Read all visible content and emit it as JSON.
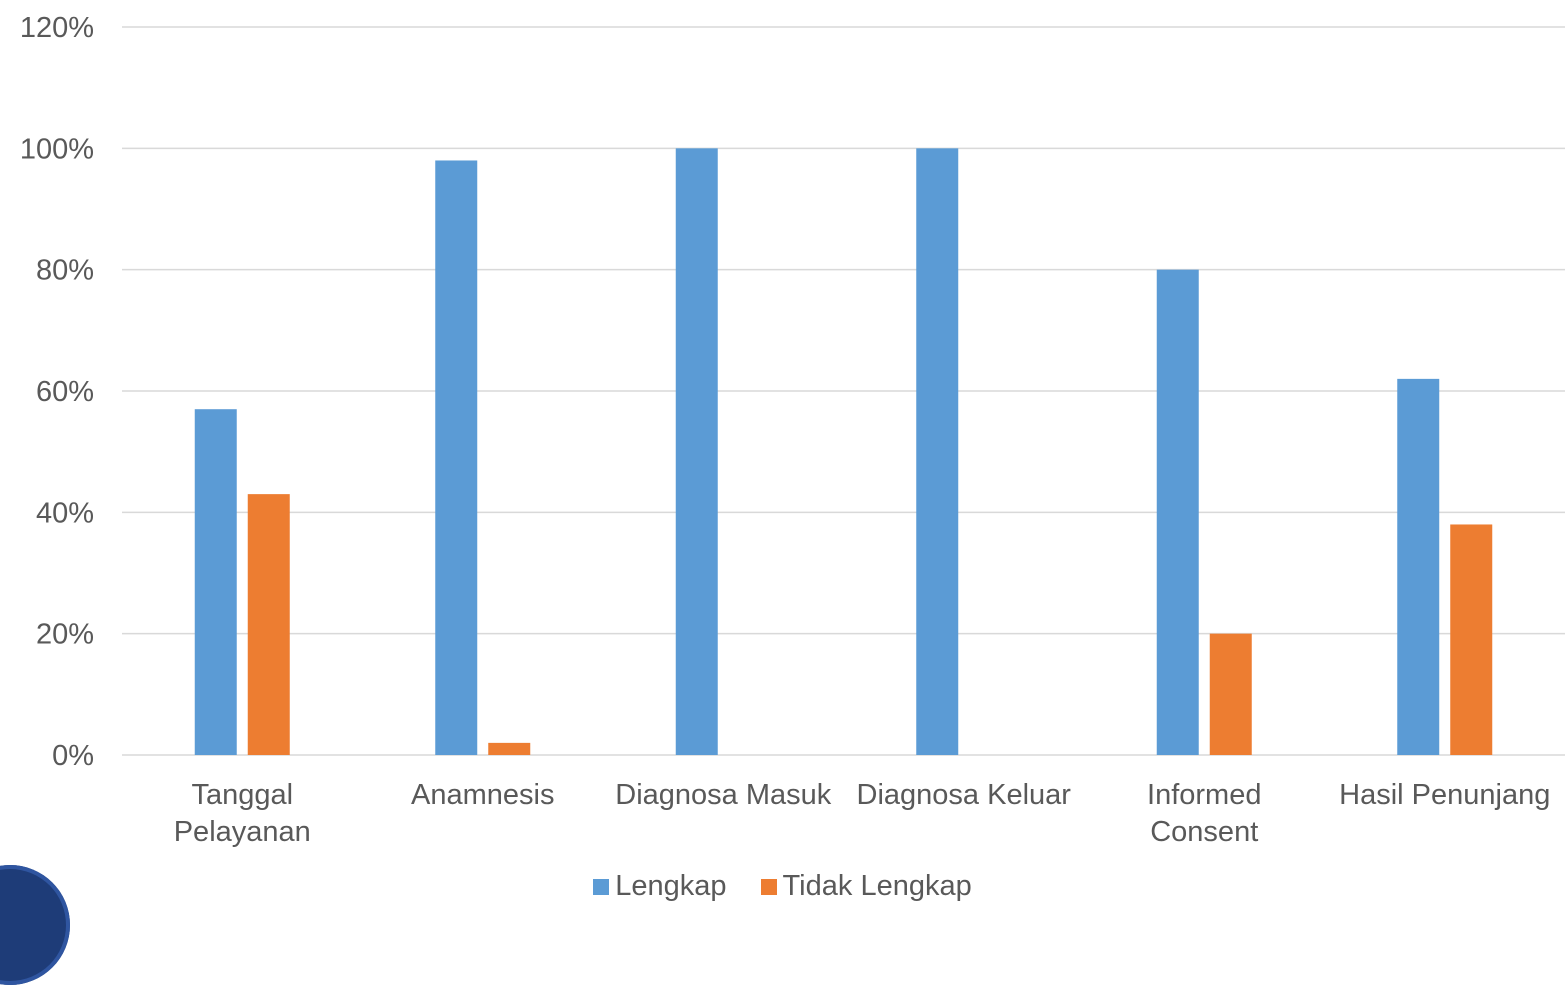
{
  "chart_data": {
    "type": "bar",
    "categories": [
      [
        "Tanggal",
        "Pelayanan"
      ],
      [
        "Anamnesis"
      ],
      [
        "Diagnosa Masuk"
      ],
      [
        "Diagnosa Keluar"
      ],
      [
        "Informed",
        "Consent"
      ],
      [
        "Hasil Penunjang"
      ]
    ],
    "series": [
      {
        "name": "Lengkap",
        "color": "#5b9bd5",
        "values": [
          57,
          98,
          100,
          100,
          80,
          62
        ]
      },
      {
        "name": "Tidak Lengkap",
        "color": "#ed7d31",
        "values": [
          43,
          2,
          0,
          0,
          20,
          38
        ]
      }
    ],
    "yticks": [
      "0%",
      "20%",
      "40%",
      "60%",
      "80%",
      "100%",
      "120%"
    ],
    "ylim": [
      0,
      120
    ],
    "grid": true,
    "legend_position": "bottom"
  },
  "legend": {
    "lengkap": "Lengkap",
    "tidak_lengkap": "Tidak Lengkap"
  },
  "logo": {
    "name": "logo-fragment"
  }
}
